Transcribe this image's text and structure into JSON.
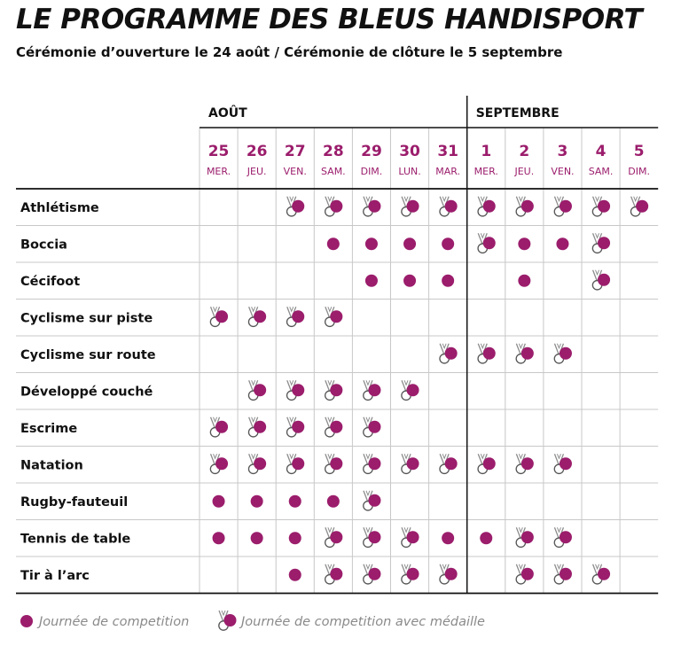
{
  "title": "LE PROGRAMME DES BLEUS HANDISPORT",
  "subtitle": "Cérémonie d’ouverture le 24 août / Cérémonie de clôture le 5 septembre",
  "months": [
    {
      "label": "AOÛT",
      "start_col": 0
    },
    {
      "label": "SEPTEMBRE",
      "start_col": 7
    }
  ],
  "days": [
    {
      "num": "25",
      "name": "MER."
    },
    {
      "num": "26",
      "name": "JEU."
    },
    {
      "num": "27",
      "name": "VEN."
    },
    {
      "num": "28",
      "name": "SAM."
    },
    {
      "num": "29",
      "name": "DIM."
    },
    {
      "num": "30",
      "name": "LUN."
    },
    {
      "num": "31",
      "name": "MAR."
    },
    {
      "num": "1",
      "name": "MER."
    },
    {
      "num": "2",
      "name": "JEU."
    },
    {
      "num": "3",
      "name": "VEN."
    },
    {
      "num": "4",
      "name": "SAM."
    },
    {
      "num": "5",
      "name": "DIM."
    }
  ],
  "sports": [
    {
      "name": "Athlétisme",
      "cells": "__MMMMMMMMMM"
    },
    {
      "name": "Boccia",
      "cells": "___DDDDMDDM_"
    },
    {
      "name": "Cécifoot",
      "cells": "____DDD_D_M_"
    },
    {
      "name": "Cyclisme sur piste",
      "cells": "MMMM________"
    },
    {
      "name": "Cyclisme sur route",
      "cells": "______MMMM__"
    },
    {
      "name": "Développé couché",
      "cells": "_MMMMM______"
    },
    {
      "name": "Escrime",
      "cells": "MMMMM_______"
    },
    {
      "name": "Natation",
      "cells": "MMMMMMMMMM__"
    },
    {
      "name": "Rugby-fauteuil",
      "cells": "DDDDM_______"
    },
    {
      "name": "Tennis de table",
      "cells": "DDDMMMDDMM__"
    },
    {
      "name": "Tir à l’arc",
      "cells": "__DMMMM_MMM_"
    }
  ],
  "cell_legend": {
    "D": "competition",
    "M": "medal",
    "_": "none"
  },
  "legend": {
    "competition": "Journée de competition",
    "medal": "Journée de competition avec médaille"
  },
  "colors": {
    "accent": "#9b1d6c",
    "grid": "#c8c8c8",
    "text": "#111111",
    "legend_text": "#8a8a8a",
    "medal_ribbon": "#8c8c8c"
  }
}
